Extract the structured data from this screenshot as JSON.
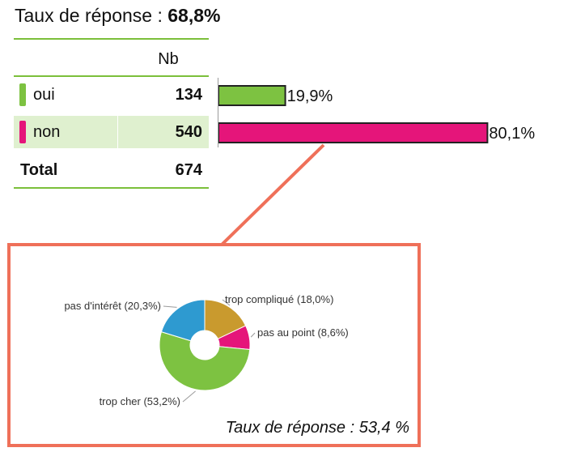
{
  "header": {
    "title_prefix": "Taux de réponse : ",
    "title_value": "68,8%"
  },
  "table": {
    "column_header": "Nb",
    "rows": [
      {
        "label": "oui",
        "value": "134",
        "color": "#7dc241"
      },
      {
        "label": "non",
        "value": "540",
        "color": "#e5157a"
      }
    ],
    "total_label": "Total",
    "total_value": "674"
  },
  "chart_data": [
    {
      "type": "bar",
      "orientation": "horizontal",
      "categories": [
        "oui",
        "non"
      ],
      "values": [
        19.9,
        80.1
      ],
      "value_labels": [
        "19,9%",
        "80,1%"
      ],
      "colors": [
        "#7dc241",
        "#e5157a"
      ]
    },
    {
      "type": "pie",
      "style": "donut",
      "categories": [
        "trop compliqué",
        "pas au point",
        "trop cher",
        "pas d'intérêt"
      ],
      "values": [
        18.0,
        8.6,
        53.2,
        20.3
      ],
      "labels": [
        "trop compliqué (18,0%)",
        "pas au point (8,6%)",
        "trop cher (53,2%)",
        "pas d'intérêt (20,3%)"
      ],
      "colors": [
        "#c99a2e",
        "#e5157a",
        "#7dc241",
        "#2e9ad0"
      ]
    }
  ],
  "subchart": {
    "response_rate": "Taux de réponse : 53,4 %"
  }
}
